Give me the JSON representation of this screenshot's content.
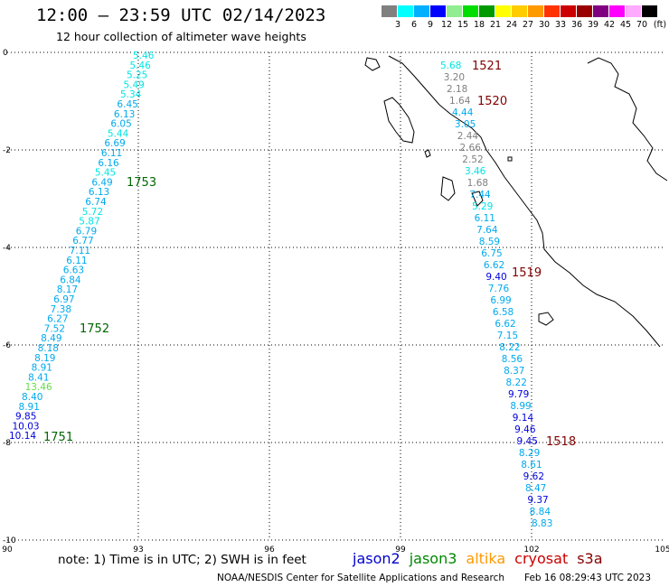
{
  "header": {
    "title": "12:00 – 23:59 UTC 02/14/2023",
    "subtitle": "12 hour collection of altimeter wave heights"
  },
  "colorbar": {
    "unit": "(ft)",
    "colors": [
      "#808080",
      "#00ffff",
      "#00b0ff",
      "#0000ff",
      "#90ee90",
      "#00dd00",
      "#009900",
      "#ffff00",
      "#ffcc00",
      "#ff9900",
      "#ff3300",
      "#cc0000",
      "#990000",
      "#800080",
      "#ff00ff",
      "#ffaaff",
      "#000000"
    ],
    "labels": [
      "3",
      "6",
      "9",
      "12",
      "15",
      "18",
      "21",
      "24",
      "27",
      "30",
      "33",
      "36",
      "39",
      "42",
      "45",
      "70"
    ]
  },
  "axes": {
    "lon_ticks": [
      "90",
      "93",
      "96",
      "99",
      "102",
      "105"
    ],
    "lat_ticks": [
      "0",
      "-2",
      "-4",
      "-6",
      "-8",
      "-10"
    ]
  },
  "tracks": {
    "west": {
      "values": [
        "5.46",
        "5.46",
        "5.25",
        "5.49",
        "5.34",
        "6.45",
        "6.13",
        "6.05",
        "5.44",
        "6.69",
        "6.11",
        "6.16",
        "5.45",
        "6.49",
        "6.13",
        "6.74",
        "5.72",
        "5.87",
        "6.79",
        "6.77",
        "7.11",
        "6.11",
        "6.63",
        "6.84",
        "8.17",
        "6.97",
        "7.38",
        "6.27",
        "7.52",
        "8.49",
        "8.18",
        "8.19",
        "8.91",
        "8.41",
        "13.46",
        "8.40",
        "8.91",
        "9.85",
        "10.03",
        "10.14"
      ],
      "colors": [
        "#00e5e5",
        "#00e5e5",
        "#00e5e5",
        "#00e5e5",
        "#00e5e5",
        "#00aaee",
        "#00aaee",
        "#00aaee",
        "#00e5e5",
        "#00aaee",
        "#00aaee",
        "#00aaee",
        "#00e5e5",
        "#00aaee",
        "#00aaee",
        "#00aaee",
        "#00e5e5",
        "#00e5e5",
        "#00aaee",
        "#00aaee",
        "#00aaee",
        "#00aaee",
        "#00aaee",
        "#00aaee",
        "#00aaee",
        "#00aaee",
        "#00aaee",
        "#00aaee",
        "#00aaee",
        "#00aaee",
        "#00aaee",
        "#00aaee",
        "#00aaee",
        "#00aaee",
        "#66dd44",
        "#00aaee",
        "#00aaee",
        "#0000dd",
        "#0000dd",
        "#0000dd"
      ],
      "passes": [
        {
          "label": "1753",
          "color": "#006600"
        },
        {
          "label": "1752",
          "color": "#006600"
        },
        {
          "label": "1751",
          "color": "#006600"
        }
      ]
    },
    "east": {
      "values": [
        "5.68",
        "3.20",
        "2.18",
        "1.64",
        "4.44",
        "3.05",
        "2.44",
        "2.66",
        "2.52",
        "3.46",
        "1.68",
        "7.44",
        "5.29",
        "6.11",
        "7.64",
        "8.59",
        "6.75",
        "6.62",
        "9.40",
        "7.76",
        "6.99",
        "6.58",
        "6.62",
        "7.15",
        "8.22",
        "8.56",
        "8.37",
        "8.22",
        "9.79",
        "8.99",
        "9.14",
        "9.46",
        "9.45",
        "8.29",
        "8.61",
        "9.62",
        "8.47",
        "9.37",
        "8.84",
        "8.83"
      ],
      "colors": [
        "#00e5e5",
        "#808080",
        "#808080",
        "#808080",
        "#00aaee",
        "#00aaee",
        "#808080",
        "#808080",
        "#808080",
        "#00e5e5",
        "#808080",
        "#00aaee",
        "#00e5e5",
        "#00aaee",
        "#00aaee",
        "#00aaee",
        "#00aaee",
        "#00aaee",
        "#0000dd",
        "#00aaee",
        "#00aaee",
        "#00aaee",
        "#00aaee",
        "#00aaee",
        "#00aaee",
        "#00aaee",
        "#00aaee",
        "#00aaee",
        "#0000dd",
        "#00aaee",
        "#0000dd",
        "#0000dd",
        "#0000dd",
        "#00aaee",
        "#00aaee",
        "#0000dd",
        "#00aaee",
        "#0000dd",
        "#00aaee",
        "#00aaee"
      ],
      "passes": [
        {
          "label": "1521",
          "color": "#800000"
        },
        {
          "label": "1520",
          "color": "#800000"
        },
        {
          "label": "1519",
          "color": "#800000"
        },
        {
          "label": "1518",
          "color": "#800000"
        }
      ]
    }
  },
  "footer": {
    "note": "note:  1) Time is in UTC;  2) SWH is in feet",
    "legend": [
      {
        "label": "jason2",
        "color": "#0000cc"
      },
      {
        "label": "jason3",
        "color": "#008800"
      },
      {
        "label": "altika",
        "color": "#ff9900"
      },
      {
        "label": "cryosat",
        "color": "#cc0000"
      },
      {
        "label": "s3a",
        "color": "#880000"
      }
    ],
    "credit": "NOAA/NESDIS Center for Satellite Applications and Research",
    "timestamp": "Feb 16 08:29:43 UTC 2023"
  }
}
